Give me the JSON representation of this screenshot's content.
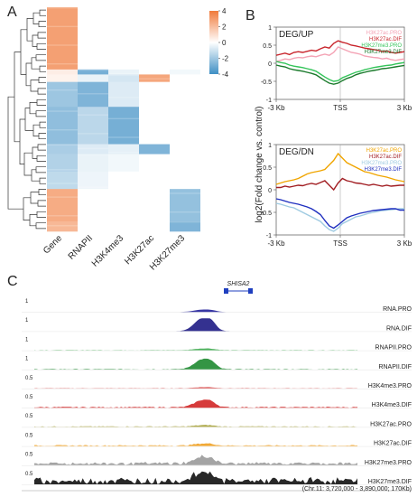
{
  "panels": {
    "a": "A",
    "b": "B",
    "c": "C"
  },
  "chart_data": [
    {
      "type": "heatmap",
      "columns": [
        "Gene",
        "RNAPII",
        "H3K4me3",
        "H3K27ac",
        "H3K27me3"
      ],
      "colorbar": {
        "ticks": [
          4,
          2,
          0,
          -2,
          -4
        ],
        "low_color": "#3f8fc4",
        "mid_color": "#ffffff",
        "high_color": "#f07a3a"
      },
      "row_groups": [
        {
          "rows": 50,
          "values": [
            3.2,
            0.0,
            0.0,
            0.0,
            0.0
          ]
        },
        {
          "rows": 4,
          "values": [
            0.6,
            -3.2,
            -0.5,
            0.0,
            -0.3
          ]
        },
        {
          "rows": 6,
          "values": [
            0.4,
            -0.5,
            -1.0,
            3.0,
            0.0
          ]
        },
        {
          "rows": 20,
          "values": [
            -2.3,
            -3.0,
            -0.8,
            0.0,
            0.0
          ]
        },
        {
          "rows": 30,
          "values": [
            -2.6,
            -1.6,
            -3.2,
            0.0,
            0.0
          ]
        },
        {
          "rows": 8,
          "values": [
            -2.0,
            -0.8,
            -0.6,
            -3.0,
            0.0
          ]
        },
        {
          "rows": 14,
          "values": [
            -1.8,
            -0.5,
            -0.3,
            0.0,
            0.0
          ]
        },
        {
          "rows": 14,
          "values": [
            -1.5,
            -0.4,
            0.0,
            0.0,
            0.0
          ]
        },
        {
          "rows": 26,
          "values": [
            2.8,
            0.0,
            0.0,
            0.0,
            -2.5
          ]
        },
        {
          "rows": 8,
          "values": [
            2.4,
            0.0,
            0.0,
            0.0,
            -3.0
          ]
        }
      ]
    },
    {
      "type": "line",
      "title": "DEG/UP",
      "ylabel": "log2(Fold change vs. control)",
      "x_ticks": [
        "-3 Kb",
        "TSS",
        "3 Kb"
      ],
      "ylim": [
        -1.0,
        1.0
      ],
      "y_ticks": [
        1.0,
        0.5,
        0,
        -0.5,
        -1.0
      ],
      "series": [
        {
          "name": "H3K27ac.PRO",
          "color": "#f4a3b5",
          "values": [
            0.05,
            0.08,
            0.12,
            0.1,
            0.14,
            0.16,
            0.15,
            0.18,
            0.2,
            0.18,
            0.22,
            0.25,
            0.22,
            0.3,
            0.45,
            0.4,
            0.35,
            0.3,
            0.28,
            0.25,
            0.2,
            0.18,
            0.16,
            0.15,
            0.12,
            0.14,
            0.1,
            0.08,
            0.1,
            0.12
          ]
        },
        {
          "name": "H3K27ac.DIF",
          "color": "#c8242b",
          "values": [
            0.22,
            0.25,
            0.28,
            0.24,
            0.3,
            0.32,
            0.3,
            0.33,
            0.36,
            0.34,
            0.4,
            0.45,
            0.42,
            0.55,
            0.62,
            0.58,
            0.55,
            0.5,
            0.48,
            0.45,
            0.42,
            0.4,
            0.38,
            0.36,
            0.32,
            0.34,
            0.3,
            0.28,
            0.3,
            0.32
          ]
        },
        {
          "name": "H3K27me3.PRO",
          "color": "#34c45a",
          "values": [
            0.05,
            0.02,
            0.0,
            -0.05,
            -0.08,
            -0.1,
            -0.12,
            -0.15,
            -0.18,
            -0.22,
            -0.3,
            -0.38,
            -0.45,
            -0.5,
            -0.48,
            -0.4,
            -0.35,
            -0.3,
            -0.25,
            -0.22,
            -0.18,
            -0.15,
            -0.12,
            -0.1,
            -0.08,
            -0.06,
            -0.05,
            -0.02,
            0.0,
            0.02
          ]
        },
        {
          "name": "H3K27me3.DIF",
          "color": "#1b7a2c",
          "values": [
            -0.05,
            -0.08,
            -0.1,
            -0.15,
            -0.18,
            -0.2,
            -0.22,
            -0.25,
            -0.28,
            -0.32,
            -0.4,
            -0.48,
            -0.55,
            -0.58,
            -0.55,
            -0.48,
            -0.42,
            -0.38,
            -0.32,
            -0.28,
            -0.25,
            -0.22,
            -0.2,
            -0.18,
            -0.15,
            -0.14,
            -0.12,
            -0.1,
            -0.08,
            -0.06
          ]
        }
      ]
    },
    {
      "type": "line",
      "title": "DEG/DN",
      "x_ticks": [
        "-3 Kb",
        "TSS",
        "3 Kb"
      ],
      "ylim": [
        -1.0,
        1.0
      ],
      "y_ticks": [
        1.0,
        0.5,
        0,
        -0.5,
        -1.0
      ],
      "series": [
        {
          "name": "H3K27ac.PRO",
          "color": "#f0a500",
          "values": [
            0.12,
            0.15,
            0.18,
            0.2,
            0.22,
            0.25,
            0.3,
            0.35,
            0.38,
            0.4,
            0.42,
            0.45,
            0.55,
            0.65,
            0.8,
            0.7,
            0.6,
            0.55,
            0.5,
            0.45,
            0.4,
            0.38,
            0.35,
            0.32,
            0.3,
            0.28,
            0.25,
            0.22,
            0.2,
            0.18
          ]
        },
        {
          "name": "H3K27ac.DIF",
          "color": "#a11d22",
          "values": [
            0.05,
            0.05,
            0.08,
            0.06,
            0.08,
            0.1,
            0.09,
            0.12,
            0.14,
            0.12,
            0.16,
            0.2,
            0.1,
            0.0,
            0.15,
            0.25,
            0.2,
            0.18,
            0.15,
            0.14,
            0.12,
            0.1,
            0.12,
            0.1,
            0.08,
            0.1,
            0.08,
            0.09,
            0.1,
            0.1
          ]
        },
        {
          "name": "H3K27me3.PRO",
          "color": "#9ecae1",
          "values": [
            -0.3,
            -0.32,
            -0.35,
            -0.38,
            -0.4,
            -0.45,
            -0.5,
            -0.55,
            -0.6,
            -0.65,
            -0.7,
            -0.8,
            -0.88,
            -0.92,
            -0.85,
            -0.75,
            -0.7,
            -0.65,
            -0.6,
            -0.58,
            -0.55,
            -0.52,
            -0.5,
            -0.48,
            -0.46,
            -0.45,
            -0.44,
            -0.43,
            -0.42,
            -0.42
          ]
        },
        {
          "name": "H3K27me3.DIF",
          "color": "#1f2fbf",
          "values": [
            -0.2,
            -0.22,
            -0.25,
            -0.28,
            -0.3,
            -0.32,
            -0.35,
            -0.38,
            -0.42,
            -0.48,
            -0.55,
            -0.68,
            -0.8,
            -0.85,
            -0.78,
            -0.7,
            -0.62,
            -0.58,
            -0.55,
            -0.52,
            -0.5,
            -0.48,
            -0.46,
            -0.45,
            -0.44,
            -0.43,
            -0.42,
            -0.42,
            -0.45,
            -0.45
          ]
        }
      ]
    },
    {
      "type": "area",
      "gene_label": "SHISA2",
      "footer": "(Chr.11: 3,720,000 - 3,890,000; 170Kb)",
      "tracks": [
        {
          "name": "RNA.PRO",
          "scale": "1",
          "color": "#22219a",
          "peak": 0.18,
          "noise": 0.0
        },
        {
          "name": "RNA.DIF",
          "scale": "1",
          "color": "#1e1b84",
          "peak": 1.0,
          "noise": 0.0
        },
        {
          "name": "RNAPII.PRO",
          "scale": "1",
          "color": "#3aa84a",
          "peak": 0.12,
          "noise": 0.03
        },
        {
          "name": "RNAPII.DIF",
          "scale": "1",
          "color": "#1e8a30",
          "peak": 0.75,
          "noise": 0.05
        },
        {
          "name": "H3K4me3.PRO",
          "scale": "0.5",
          "color": "#e07070",
          "peak": 0.1,
          "noise": 0.04
        },
        {
          "name": "H3K4me3.DIF",
          "scale": "0.5",
          "color": "#d12626",
          "peak": 0.55,
          "noise": 0.08
        },
        {
          "name": "H3K27ac.PRO",
          "scale": "0.5",
          "color": "#a6a23a",
          "peak": 0.1,
          "noise": 0.06
        },
        {
          "name": "H3K27ac.DIF",
          "scale": "0.5",
          "color": "#f0a020",
          "peak": 0.15,
          "noise": 0.08
        },
        {
          "name": "H3K27me3.PRO",
          "scale": "0.5",
          "color": "#9a9a9a",
          "peak": 0.5,
          "noise": 0.2
        },
        {
          "name": "H3K27me3.DIF",
          "scale": "0.5",
          "color": "#111111",
          "peak": 0.7,
          "noise": 0.4
        }
      ]
    }
  ]
}
